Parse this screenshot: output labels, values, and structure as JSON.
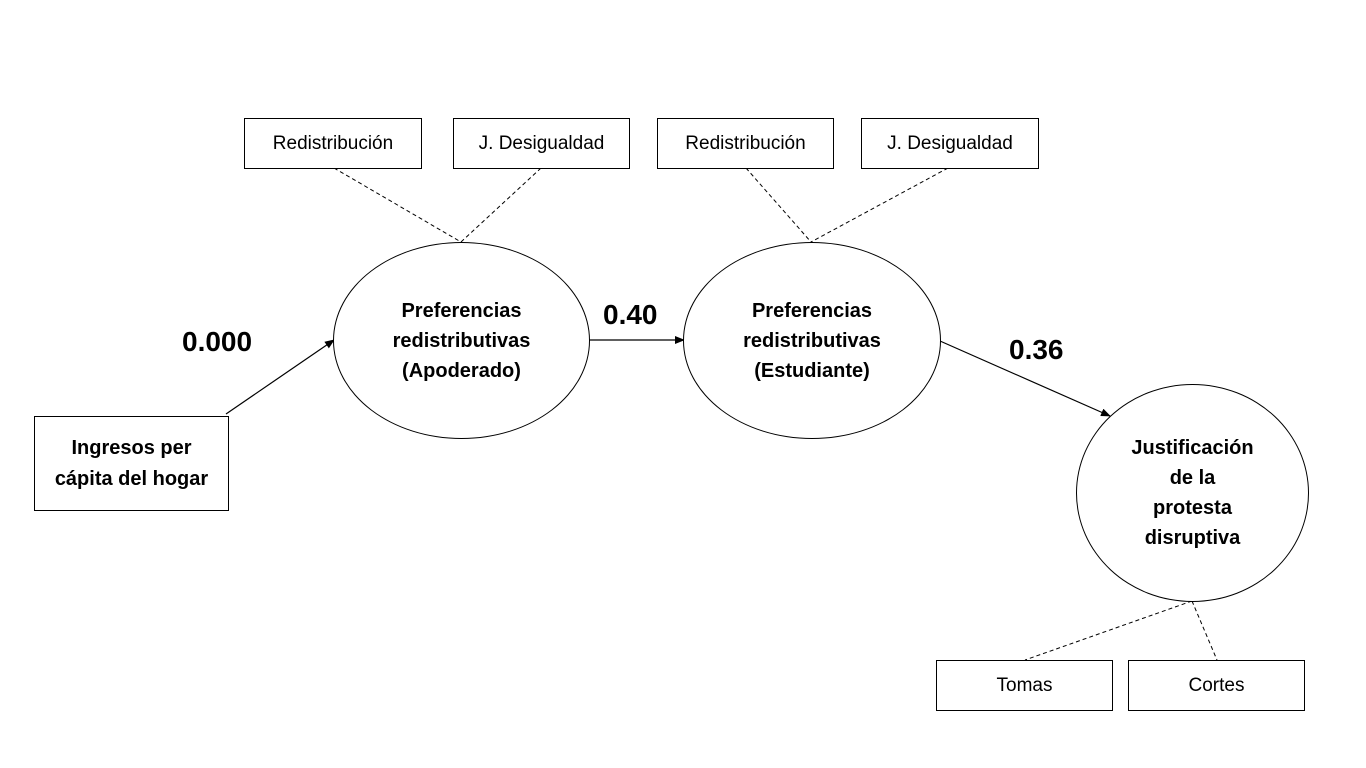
{
  "diagram": {
    "source_node": {
      "label": "Ingresos per\ncápita del hogar"
    },
    "latent_parent": {
      "label": "Preferencias\nredistributivas\n(Apoderado)",
      "indicators": [
        "Redistribución",
        "J. Desigualdad"
      ]
    },
    "latent_student": {
      "label": "Preferencias\nredistributivas\n(Estudiante)",
      "indicators": [
        "Redistribución",
        "J. Desigualdad"
      ]
    },
    "outcome": {
      "label": "Justificación\nde la\nprotesta\ndisruptiva",
      "indicators": [
        "Tomas",
        "Cortes"
      ]
    },
    "paths": [
      {
        "from": "Ingresos per cápita del hogar",
        "to": "Preferencias redistributivas (Apoderado)",
        "coefficient": "0.000"
      },
      {
        "from": "Preferencias redistributivas (Apoderado)",
        "to": "Preferencias redistributivas (Estudiante)",
        "coefficient": "0.40"
      },
      {
        "from": "Preferencias redistributivas (Estudiante)",
        "to": "Justificación de la protesta disruptiva",
        "coefficient": "0.36"
      }
    ]
  }
}
